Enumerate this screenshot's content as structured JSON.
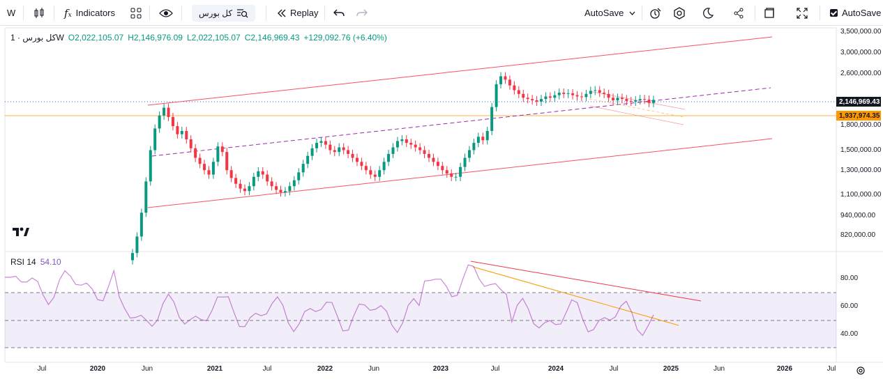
{
  "toolbar": {
    "interval": "W",
    "indicators_label": "Indicators",
    "symbol": "کل بورس",
    "replay_label": "Replay",
    "autosave_label": "AutoSave",
    "autosave_check_label": "AutoSave"
  },
  "legend": {
    "title": "کل بورس · 1W",
    "open": "O2,022,105.07",
    "high": "H2,146,976.09",
    "low": "L2,022,105.07",
    "close": "C2,146,969.43",
    "change": "+129,092.76 (+6.40%)"
  },
  "rsi_legend": {
    "name": "RSI 14",
    "value": "54.10"
  },
  "price_axis": [
    "3,500,000.00",
    "3,000,000.00",
    "2,600,000.00",
    "1,800,000.00",
    "1,500,000.00",
    "1,300,000.00",
    "1,100,000.00",
    "940,000.00",
    "820,000.00"
  ],
  "last_price_tag": "2,146,969.43",
  "line_price_tag": "1,937,974.35",
  "rsi_axis": [
    "80.00",
    "60.00",
    "40.00"
  ],
  "time_axis": [
    {
      "label": "Jul",
      "bold": false
    },
    {
      "label": "2020",
      "bold": true
    },
    {
      "label": "Jun",
      "bold": false
    },
    {
      "label": "2021",
      "bold": true
    },
    {
      "label": "Jul",
      "bold": false
    },
    {
      "label": "2022",
      "bold": true
    },
    {
      "label": "Jun",
      "bold": false
    },
    {
      "label": "2023",
      "bold": true
    },
    {
      "label": "Jul",
      "bold": false
    },
    {
      "label": "2024",
      "bold": true
    },
    {
      "label": "Jul",
      "bold": false
    },
    {
      "label": "2025",
      "bold": true
    },
    {
      "label": "Jun",
      "bold": false
    },
    {
      "label": "2026",
      "bold": true
    },
    {
      "label": "Jul",
      "bold": false
    }
  ],
  "colors": {
    "up": "#089981",
    "down": "#f23645",
    "rsi": "#9c27b0",
    "orange": "#ff9800",
    "channel": "#f7525f",
    "midline": "#9c27b0"
  },
  "chart_data": {
    "type": "candlestick",
    "weekly_close": [
      720000,
      810000,
      960000,
      1200000,
      1500000,
      1750000,
      1920000,
      2030000,
      1900000,
      1780000,
      1680000,
      1720000,
      1620000,
      1520000,
      1420000,
      1360000,
      1300000,
      1260000,
      1380000,
      1540000,
      1480000,
      1300000,
      1230000,
      1180000,
      1140000,
      1120000,
      1160000,
      1240000,
      1290000,
      1260000,
      1200000,
      1160000,
      1130000,
      1110000,
      1120000,
      1160000,
      1210000,
      1280000,
      1360000,
      1440000,
      1520000,
      1580000,
      1600000,
      1560000,
      1500000,
      1480000,
      1530000,
      1500000,
      1460000,
      1420000,
      1380000,
      1340000,
      1300000,
      1260000,
      1240000,
      1300000,
      1380000,
      1460000,
      1530000,
      1600000,
      1620000,
      1580000,
      1560000,
      1530000,
      1500000,
      1460000,
      1420000,
      1380000,
      1340000,
      1300000,
      1270000,
      1240000,
      1240000,
      1330000,
      1420000,
      1500000,
      1580000,
      1650000,
      1610000,
      1720000,
      2040000,
      2400000,
      2540000,
      2480000,
      2380000,
      2300000,
      2240000,
      2180000,
      2160000,
      2140000,
      2120000,
      2160000,
      2200000,
      2180000,
      2220000,
      2260000,
      2240000,
      2250000,
      2220000,
      2200000,
      2190000,
      2240000,
      2290000,
      2300000,
      2260000,
      2240000,
      2180000,
      2140000,
      2180000,
      2160000,
      2130000,
      2120000,
      2140000,
      2160000,
      2150000,
      2100000,
      2146969
    ],
    "price_levels": [
      3500000,
      3000000,
      2600000,
      2146969.43,
      1937974.35,
      1800000,
      1500000,
      1300000,
      1100000,
      940000,
      820000
    ],
    "rsi_levels": [
      80,
      60,
      40
    ],
    "rsi_last": 54.1
  }
}
